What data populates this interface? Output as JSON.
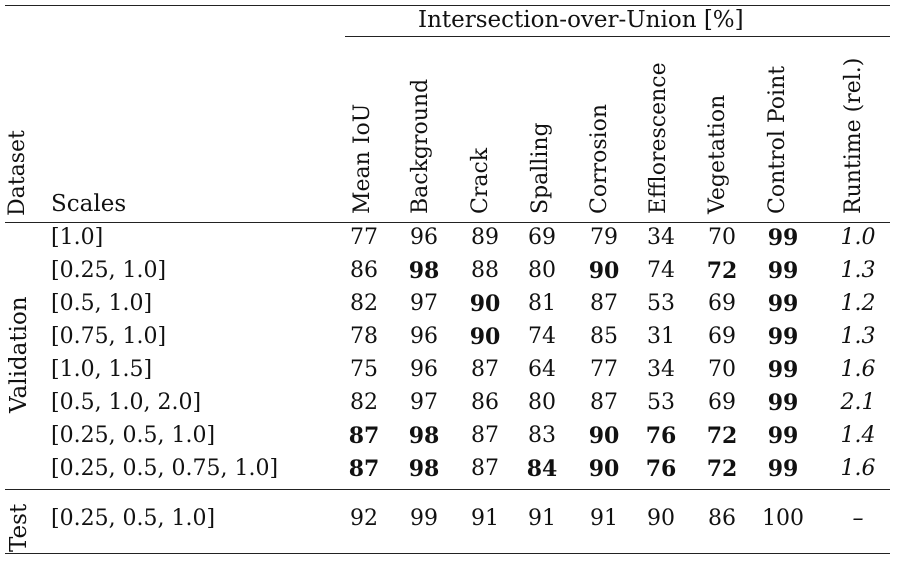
{
  "table": {
    "super_header": "Intersection-over-Union [%]",
    "col_dataset": "Dataset",
    "col_scales": "Scales",
    "columns": [
      "Mean IoU",
      "Background",
      "Crack",
      "Spalling",
      "Corrosion",
      "Efflorescence",
      "Vegetation",
      "Control Point",
      "Runtime (rel.)"
    ],
    "groups": [
      {
        "label": "Validation",
        "rows": [
          {
            "scale": "[1.0]",
            "values": [
              "77",
              "96",
              "89",
              "69",
              "79",
              "34",
              "70",
              "99",
              "1.0"
            ],
            "bold": [
              false,
              false,
              false,
              false,
              false,
              false,
              false,
              true,
              false
            ]
          },
          {
            "scale": "[0.25, 1.0]",
            "values": [
              "86",
              "98",
              "88",
              "80",
              "90",
              "74",
              "72",
              "99",
              "1.3"
            ],
            "bold": [
              false,
              true,
              false,
              false,
              true,
              false,
              true,
              true,
              false
            ]
          },
          {
            "scale": "[0.5, 1.0]",
            "values": [
              "82",
              "97",
              "90",
              "81",
              "87",
              "53",
              "69",
              "99",
              "1.2"
            ],
            "bold": [
              false,
              false,
              true,
              false,
              false,
              false,
              false,
              true,
              false
            ]
          },
          {
            "scale": "[0.75, 1.0]",
            "values": [
              "78",
              "96",
              "90",
              "74",
              "85",
              "31",
              "69",
              "99",
              "1.3"
            ],
            "bold": [
              false,
              false,
              true,
              false,
              false,
              false,
              false,
              true,
              false
            ]
          },
          {
            "scale": "[1.0, 1.5]",
            "values": [
              "75",
              "96",
              "87",
              "64",
              "77",
              "34",
              "70",
              "99",
              "1.6"
            ],
            "bold": [
              false,
              false,
              false,
              false,
              false,
              false,
              false,
              true,
              false
            ]
          },
          {
            "scale": "[0.5, 1.0, 2.0]",
            "values": [
              "82",
              "97",
              "86",
              "80",
              "87",
              "53",
              "69",
              "99",
              "2.1"
            ],
            "bold": [
              false,
              false,
              false,
              false,
              false,
              false,
              false,
              true,
              false
            ]
          },
          {
            "scale": "[0.25, 0.5, 1.0]",
            "values": [
              "87",
              "98",
              "87",
              "83",
              "90",
              "76",
              "72",
              "99",
              "1.4"
            ],
            "bold": [
              true,
              true,
              false,
              false,
              true,
              true,
              true,
              true,
              false
            ]
          },
          {
            "scale": "[0.25, 0.5, 0.75, 1.0]",
            "values": [
              "87",
              "98",
              "87",
              "84",
              "90",
              "76",
              "72",
              "99",
              "1.6"
            ],
            "bold": [
              true,
              true,
              false,
              true,
              true,
              true,
              true,
              true,
              false
            ]
          }
        ]
      },
      {
        "label": "Test",
        "rows": [
          {
            "scale": "[0.25, 0.5, 1.0]",
            "values": [
              "92",
              "99",
              "91",
              "91",
              "91",
              "90",
              "86",
              "100",
              "–"
            ],
            "bold": [
              false,
              false,
              false,
              false,
              false,
              false,
              false,
              false,
              false
            ]
          }
        ]
      }
    ]
  }
}
